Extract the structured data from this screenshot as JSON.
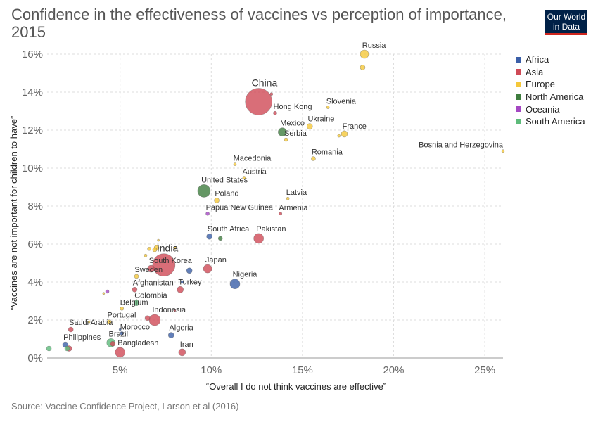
{
  "header": {
    "title": "Confidence in the effectiveness of vaccines vs perception of importance, 2015",
    "logo_line1": "Our World",
    "logo_line2": "in Data"
  },
  "footer": {
    "source": "Source: Vaccine Confidence Project, Larson et al (2016)"
  },
  "legend": [
    {
      "name": "Africa",
      "color": "#3b5fa8"
    },
    {
      "name": "Asia",
      "color": "#cf4a56"
    },
    {
      "name": "Europe",
      "color": "#f5c83a"
    },
    {
      "name": "North America",
      "color": "#3e7d3e"
    },
    {
      "name": "Oceania",
      "color": "#a447c2"
    },
    {
      "name": "South America",
      "color": "#5dbb7a"
    }
  ],
  "chart_data": {
    "type": "scatter",
    "title": "Confidence in the effectiveness of vaccines vs perception of importance, 2015",
    "xlabel": "“Overall I do not think vaccines are effective”",
    "ylabel": "“Vaccines are not important for children to have”",
    "xlim": [
      1,
      26
    ],
    "ylim": [
      0,
      16
    ],
    "x_ticks": [
      {
        "value": 5,
        "label": "5%"
      },
      {
        "value": 10,
        "label": "10%"
      },
      {
        "value": 15,
        "label": "15%"
      },
      {
        "value": 20,
        "label": "20%"
      },
      {
        "value": 25,
        "label": "25%"
      }
    ],
    "y_ticks": [
      {
        "value": 0,
        "label": "0%"
      },
      {
        "value": 2,
        "label": "2%"
      },
      {
        "value": 4,
        "label": "4%"
      },
      {
        "value": 6,
        "label": "6%"
      },
      {
        "value": 8,
        "label": "8%"
      },
      {
        "value": 10,
        "label": "10%"
      },
      {
        "value": 12,
        "label": "12%"
      },
      {
        "value": 14,
        "label": "14%"
      },
      {
        "value": 16,
        "label": "16%"
      }
    ],
    "grid": true,
    "legend_position": "right",
    "points": [
      {
        "label": "Russia",
        "x": 18.4,
        "y": 16.0,
        "region": "Europe",
        "size": 6
      },
      {
        "label": "",
        "x": 18.3,
        "y": 15.3,
        "region": "Europe",
        "size": 3.5
      },
      {
        "label": "China",
        "x": 12.6,
        "y": 13.5,
        "region": "Asia",
        "size": 19
      },
      {
        "label": "",
        "x": 13.3,
        "y": 13.9,
        "region": "Asia",
        "size": 2
      },
      {
        "label": "Hong Kong",
        "x": 13.5,
        "y": 12.9,
        "region": "Asia",
        "size": 2.5
      },
      {
        "label": "Slovenia",
        "x": 16.4,
        "y": 13.2,
        "region": "Europe",
        "size": 2
      },
      {
        "label": "Mexico",
        "x": 13.9,
        "y": 11.9,
        "region": "North America",
        "size": 6
      },
      {
        "label": "Ukraine",
        "x": 15.4,
        "y": 12.2,
        "region": "Europe",
        "size": 4
      },
      {
        "label": "Serbia",
        "x": 14.1,
        "y": 11.5,
        "region": "Europe",
        "size": 2.5
      },
      {
        "label": "France",
        "x": 17.3,
        "y": 11.8,
        "region": "Europe",
        "size": 4.5
      },
      {
        "label": "",
        "x": 17.0,
        "y": 11.7,
        "region": "Europe",
        "size": 2
      },
      {
        "label": "Bosnia and Herzegovina",
        "x": 26.0,
        "y": 10.9,
        "region": "Europe",
        "size": 2
      },
      {
        "label": "Romania",
        "x": 15.6,
        "y": 10.5,
        "region": "Europe",
        "size": 3
      },
      {
        "label": "Macedonia",
        "x": 11.3,
        "y": 10.2,
        "region": "Europe",
        "size": 2
      },
      {
        "label": "Austria",
        "x": 11.8,
        "y": 9.5,
        "region": "Europe",
        "size": 2
      },
      {
        "label": "United States",
        "x": 9.6,
        "y": 8.8,
        "region": "North America",
        "size": 9
      },
      {
        "label": "Poland",
        "x": 10.3,
        "y": 8.3,
        "region": "Europe",
        "size": 3.5
      },
      {
        "label": "Latvia",
        "x": 14.2,
        "y": 8.4,
        "region": "Europe",
        "size": 2
      },
      {
        "label": "Papua New Guinea",
        "x": 9.8,
        "y": 7.6,
        "region": "Oceania",
        "size": 2.5
      },
      {
        "label": "Armenia",
        "x": 13.8,
        "y": 7.6,
        "region": "Asia",
        "size": 2
      },
      {
        "label": "South Africa",
        "x": 9.9,
        "y": 6.4,
        "region": "Africa",
        "size": 4
      },
      {
        "label": "",
        "x": 10.5,
        "y": 6.3,
        "region": "North America",
        "size": 3
      },
      {
        "label": "Pakistan",
        "x": 12.6,
        "y": 6.3,
        "region": "Asia",
        "size": 7
      },
      {
        "label": "India",
        "x": 7.4,
        "y": 4.9,
        "region": "Asia",
        "size": 16
      },
      {
        "label": "",
        "x": 7.1,
        "y": 6.2,
        "region": "Europe",
        "size": 1.5
      },
      {
        "label": "",
        "x": 7.0,
        "y": 5.8,
        "region": "Europe",
        "size": 3.5
      },
      {
        "label": "",
        "x": 6.9,
        "y": 5.7,
        "region": "Europe",
        "size": 3
      },
      {
        "label": "",
        "x": 6.6,
        "y": 5.75,
        "region": "Europe",
        "size": 2.5
      },
      {
        "label": "",
        "x": 6.4,
        "y": 5.4,
        "region": "Europe",
        "size": 2
      },
      {
        "label": "",
        "x": 8.0,
        "y": 5.8,
        "region": "Europe",
        "size": 2
      },
      {
        "label": "South Korea",
        "x": 6.7,
        "y": 4.7,
        "region": "Asia",
        "size": 5
      },
      {
        "label": "",
        "x": 8.8,
        "y": 4.6,
        "region": "Africa",
        "size": 4
      },
      {
        "label": "Japan",
        "x": 9.8,
        "y": 4.7,
        "region": "Asia",
        "size": 6
      },
      {
        "label": "Sweden",
        "x": 5.9,
        "y": 4.3,
        "region": "Europe",
        "size": 3
      },
      {
        "label": "Nigeria",
        "x": 11.3,
        "y": 3.9,
        "region": "Africa",
        "size": 7
      },
      {
        "label": "Afghanistan",
        "x": 5.8,
        "y": 3.6,
        "region": "Asia",
        "size": 3.5
      },
      {
        "label": "Turkey",
        "x": 8.3,
        "y": 3.6,
        "region": "Asia",
        "size": 4.5
      },
      {
        "label": "",
        "x": 8.4,
        "y": 4.0,
        "region": "Africa",
        "size": 2
      },
      {
        "label": "",
        "x": 4.3,
        "y": 3.5,
        "region": "Oceania",
        "size": 2.5
      },
      {
        "label": "",
        "x": 4.1,
        "y": 3.4,
        "region": "Europe",
        "size": 1.5
      },
      {
        "label": "Colombia",
        "x": 5.9,
        "y": 2.9,
        "region": "South America",
        "size": 4
      },
      {
        "label": "Belgium",
        "x": 5.1,
        "y": 2.6,
        "region": "Europe",
        "size": 2.5
      },
      {
        "label": "Indonesia",
        "x": 6.9,
        "y": 2.0,
        "region": "Asia",
        "size": 8
      },
      {
        "label": "",
        "x": 6.5,
        "y": 2.1,
        "region": "Asia",
        "size": 3.5
      },
      {
        "label": "",
        "x": 8.0,
        "y": 2.5,
        "region": "Asia",
        "size": 1.5
      },
      {
        "label": "Portugal",
        "x": 4.4,
        "y": 1.9,
        "region": "Europe",
        "size": 3
      },
      {
        "label": "",
        "x": 3.3,
        "y": 1.9,
        "region": "Europe",
        "size": 1.5
      },
      {
        "label": "Saudi Arabia",
        "x": 2.3,
        "y": 1.5,
        "region": "Asia",
        "size": 3.5
      },
      {
        "label": "Morocco",
        "x": 5.1,
        "y": 1.3,
        "region": "Africa",
        "size": 2.5
      },
      {
        "label": "",
        "x": 5.0,
        "y": 1.5,
        "region": "Africa",
        "size": 1.5
      },
      {
        "label": "Algeria",
        "x": 7.8,
        "y": 1.2,
        "region": "Africa",
        "size": 4
      },
      {
        "label": "Brazil",
        "x": 4.5,
        "y": 0.8,
        "region": "South America",
        "size": 6
      },
      {
        "label": "",
        "x": 4.6,
        "y": 0.75,
        "region": "Asia",
        "size": 3.5
      },
      {
        "label": "Philippines",
        "x": 2.0,
        "y": 0.7,
        "region": "Africa",
        "size": 4
      },
      {
        "label": "",
        "x": 2.2,
        "y": 0.5,
        "region": "Asia",
        "size": 4
      },
      {
        "label": "",
        "x": 2.1,
        "y": 0.5,
        "region": "South America",
        "size": 3.5
      },
      {
        "label": "",
        "x": 1.1,
        "y": 0.5,
        "region": "South America",
        "size": 3.5
      },
      {
        "label": "Bangladesh",
        "x": 5.0,
        "y": 0.3,
        "region": "Asia",
        "size": 7
      },
      {
        "label": "Iran",
        "x": 8.4,
        "y": 0.3,
        "region": "Asia",
        "size": 5
      }
    ]
  }
}
